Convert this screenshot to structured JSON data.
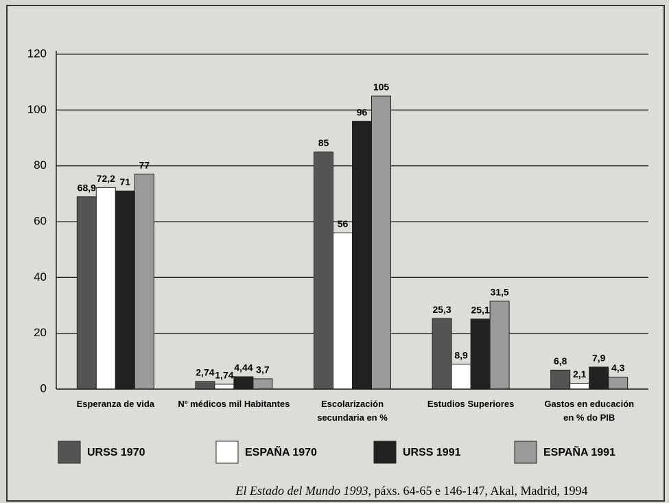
{
  "chart_data": {
    "type": "bar",
    "categories": [
      "Esperanza de vida",
      "Nº médicos mil Habitantes",
      "Escolarización\nsecundaria en %",
      "Estudios Superiores",
      "Gastos en educación\nen % do PIB"
    ],
    "series": [
      {
        "name": "URSS 1970",
        "color": "#555555",
        "values": [
          68.9,
          2.74,
          85,
          25.3,
          6.8
        ],
        "value_labels": [
          "68,9",
          "2,74",
          "85",
          "25,3",
          "6,8"
        ]
      },
      {
        "name": "ESPAÑA 1970",
        "color": "#ffffff",
        "values": [
          72.2,
          1.74,
          56,
          8.9,
          2.1
        ],
        "value_labels": [
          "72,2",
          "1,74",
          "56",
          "8,9",
          "2,1"
        ]
      },
      {
        "name": "URSS 1991",
        "color": "#222222",
        "values": [
          71,
          4.44,
          96,
          25.1,
          7.9
        ],
        "value_labels": [
          "71",
          "4,44",
          "96",
          "25,1",
          "7,9"
        ]
      },
      {
        "name": "ESPAÑA 1991",
        "color": "#9a9a9a",
        "values": [
          77,
          3.7,
          105,
          31.5,
          4.3
        ],
        "value_labels": [
          "77",
          "3,7",
          "105",
          "31,5",
          "4,3"
        ]
      }
    ],
    "ylim": [
      0,
      120
    ],
    "yticks": [
      0,
      20,
      40,
      60,
      80,
      100,
      120
    ],
    "grid": true,
    "source_title": "El Estado del Mundo 1993",
    "source_rest": ", páxs. 64-65 e 146-147, Akal, Madrid, 1994"
  }
}
